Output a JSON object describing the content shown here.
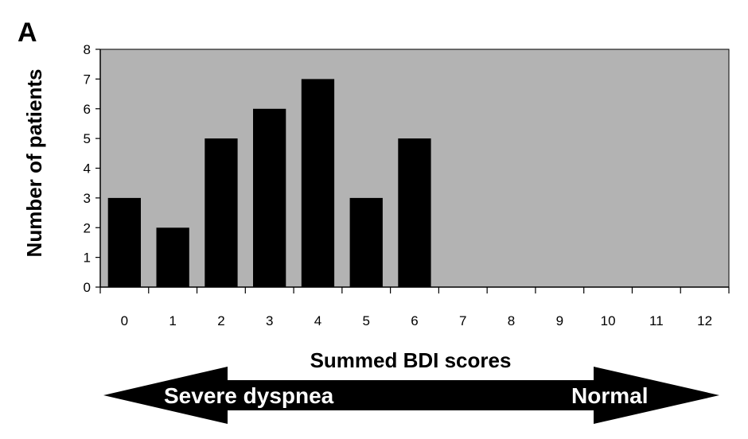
{
  "panel_label": "A",
  "arrow": {
    "left_label": "Severe dyspnea",
    "right_label": "Normal"
  },
  "colors": {
    "plot_background": "#b3b3b3",
    "bar": "#000000",
    "arrow": "#000000"
  },
  "chart_data": {
    "type": "bar",
    "categories": [
      "0",
      "1",
      "2",
      "3",
      "4",
      "5",
      "6",
      "7",
      "8",
      "9",
      "10",
      "11",
      "12"
    ],
    "values": [
      3,
      2,
      5,
      6,
      7,
      3,
      5,
      0,
      0,
      0,
      0,
      0,
      0
    ],
    "xlabel": "Summed BDI scores",
    "ylabel": "Number of patients",
    "ylim": [
      0,
      8
    ],
    "yticks": [
      "0",
      "1",
      "2",
      "3",
      "4",
      "5",
      "6",
      "7",
      "8"
    ],
    "grid": false,
    "legend": "none"
  }
}
